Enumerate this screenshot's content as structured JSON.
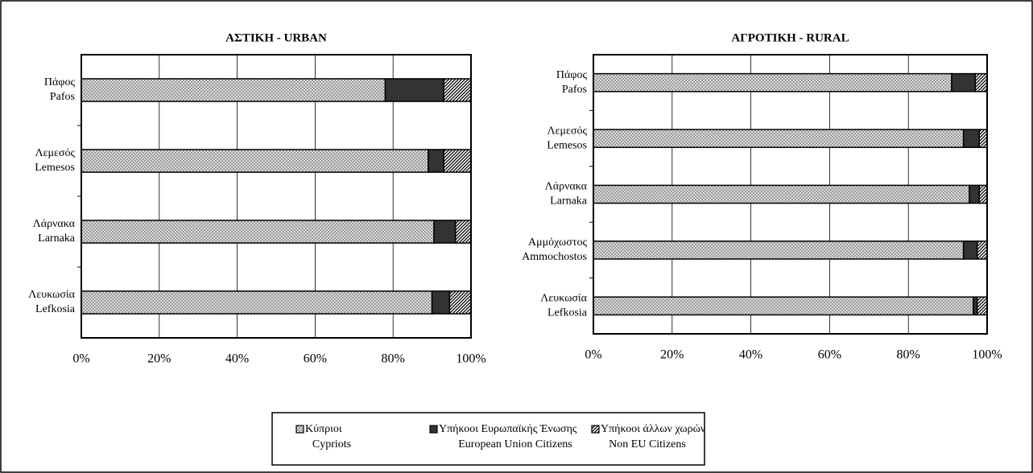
{
  "chart_data": [
    {
      "type": "bar",
      "orientation": "horizontal",
      "stacked": true,
      "title": "ΑΣΤΙΚΗ - URBAN",
      "categories": [
        [
          "Πάφος",
          "Pafos"
        ],
        [
          "Λεμεσός",
          "Lemesos"
        ],
        [
          "Λάρνακα",
          "Larnaka"
        ],
        [
          "Λευκωσία",
          "Lefkosia"
        ]
      ],
      "series": [
        {
          "name": [
            "Κύπριοι",
            "Cypriots"
          ],
          "color": "#9a9a9a",
          "pattern": "crosshatch",
          "values": [
            78,
            89,
            90.5,
            90
          ]
        },
        {
          "name": [
            "Υπήκοοι Ευρωπαϊκής Ένωσης",
            "European Union Citizens"
          ],
          "color": "#333333",
          "pattern": "solid",
          "values": [
            15,
            4,
            5.5,
            4.5
          ]
        },
        {
          "name": [
            "Υπήκοοι άλλων χωρών",
            "Non EU Citizens"
          ],
          "color": "#000000",
          "pattern": "diagonal",
          "values": [
            7,
            7,
            4,
            5.5
          ]
        }
      ],
      "xlim": [
        0,
        100
      ],
      "xticks": [
        {
          "value": 0,
          "label": "0%"
        },
        {
          "value": 20,
          "label": "20%"
        },
        {
          "value": 40,
          "label": "40%"
        },
        {
          "value": 60,
          "label": "60%"
        },
        {
          "value": 80,
          "label": "80%"
        },
        {
          "value": 100,
          "label": "100%"
        }
      ],
      "grid": true
    },
    {
      "type": "bar",
      "orientation": "horizontal",
      "stacked": true,
      "title": "ΑΓΡΟΤΙΚΗ - RURAL",
      "categories": [
        [
          "Πάφος",
          "Pafos"
        ],
        [
          "Λεμεσός",
          "Lemesos"
        ],
        [
          "Λάρνακα",
          "Larnaka"
        ],
        [
          "Αμμόχωστος",
          "Ammochostos"
        ],
        [
          "Λευκωσία",
          "Lefkosia"
        ]
      ],
      "series": [
        {
          "color": "#9a9a9a",
          "pattern": "crosshatch",
          "values": [
            91,
            94,
            95.5,
            94,
            96.5
          ]
        },
        {
          "color": "#333333",
          "pattern": "solid",
          "values": [
            6,
            4,
            2.5,
            3.5,
            1
          ]
        },
        {
          "color": "#000000",
          "pattern": "diagonal",
          "values": [
            3,
            2,
            2,
            2.5,
            2.5
          ]
        }
      ],
      "xlim": [
        0,
        100
      ],
      "xticks": [
        {
          "value": 0,
          "label": "0%"
        },
        {
          "value": 20,
          "label": "20%"
        },
        {
          "value": 40,
          "label": "40%"
        },
        {
          "value": 60,
          "label": "60%"
        },
        {
          "value": 80,
          "label": "80%"
        },
        {
          "value": 100,
          "label": "100%"
        }
      ],
      "grid": true
    }
  ]
}
